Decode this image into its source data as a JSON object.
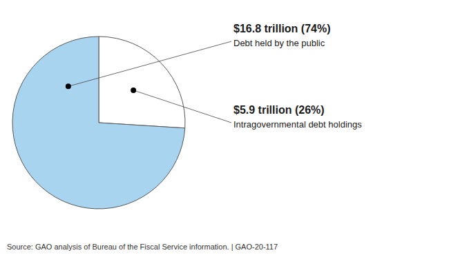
{
  "chart_data": {
    "type": "pie",
    "categories": [
      "Intragovernmental debt holdings",
      "Debt held by the public"
    ],
    "values": [
      26,
      74
    ],
    "value_labels": [
      "$5.9 trillion (26%)",
      "$16.8 trillion (74%)"
    ],
    "colors": [
      "#ffffff",
      "#a8d4f0"
    ],
    "data_labels": true,
    "annotations": [
      "Source: GAO analysis of Bureau of the Fiscal Service information.  |  GAO-20-117"
    ]
  }
}
